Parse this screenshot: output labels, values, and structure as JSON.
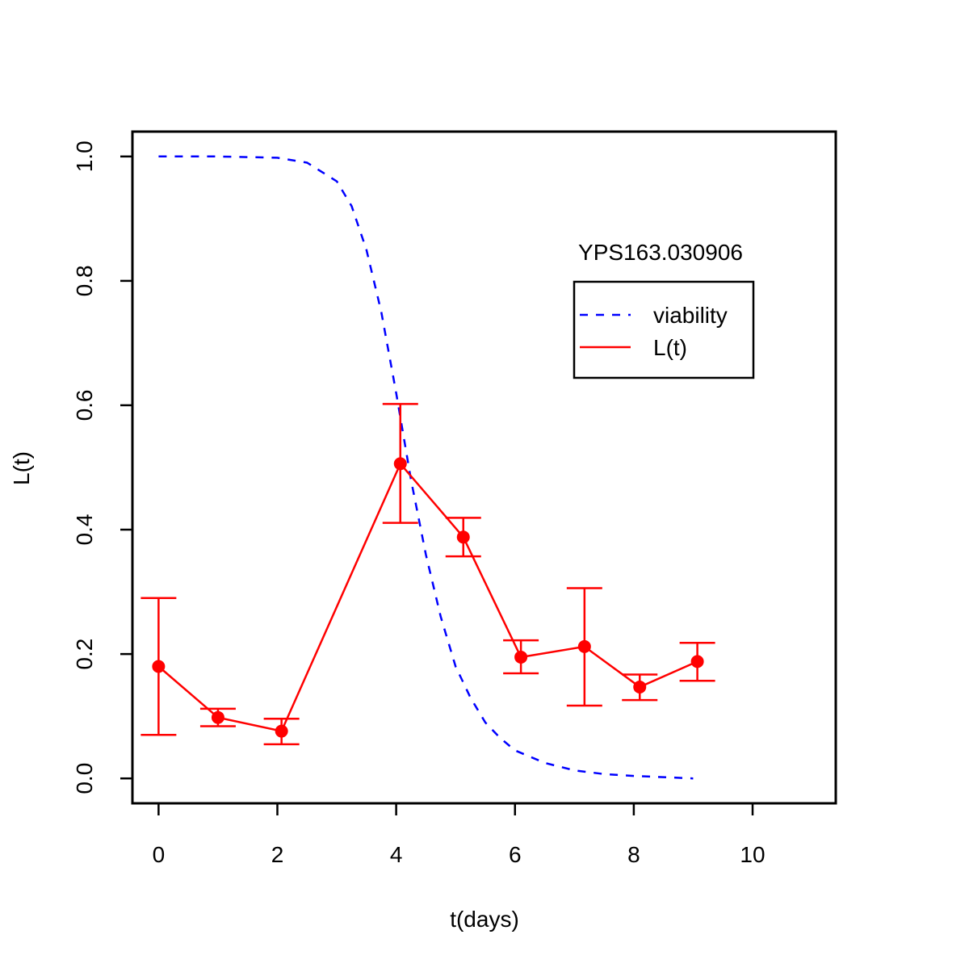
{
  "chart_data": {
    "type": "line",
    "xlabel": "t(days)",
    "ylabel": "L(t)",
    "annotation": "YPS163.030906",
    "xlim": [
      -0.44,
      11.4
    ],
    "ylim": [
      -0.04,
      1.04
    ],
    "x_ticks": [
      0,
      2,
      4,
      6,
      8,
      10
    ],
    "y_ticks": [
      0.0,
      0.2,
      0.4,
      0.6,
      0.8,
      1.0
    ],
    "x_tick_labels": [
      "0",
      "2",
      "4",
      "6",
      "8",
      "10"
    ],
    "y_tick_labels": [
      "0.0",
      "0.2",
      "0.4",
      "0.6",
      "0.8",
      "1.0"
    ],
    "grid": false,
    "legend_position": "top-right",
    "series": [
      {
        "name": "viability",
        "style": "dashed",
        "color": "#0000ff",
        "x": [
          0,
          1,
          2,
          2.5,
          3,
          3.25,
          3.5,
          3.75,
          4,
          4.25,
          4.5,
          4.75,
          5,
          5.25,
          5.5,
          5.75,
          6,
          6.5,
          7,
          7.5,
          8,
          8.5,
          9
        ],
        "y": [
          1.0,
          1.0,
          0.998,
          0.99,
          0.96,
          0.92,
          0.85,
          0.75,
          0.62,
          0.48,
          0.36,
          0.26,
          0.18,
          0.13,
          0.09,
          0.065,
          0.045,
          0.025,
          0.013,
          0.007,
          0.004,
          0.002,
          0.0
        ]
      },
      {
        "name": "L(t)",
        "style": "solid",
        "color": "#ff0000",
        "x": [
          0,
          1,
          2.07,
          4.07,
          5.13,
          6.1,
          7.17,
          8.1,
          9.07
        ],
        "y": [
          0.18,
          0.098,
          0.076,
          0.506,
          0.388,
          0.195,
          0.212,
          0.147,
          0.188
        ],
        "err_low": [
          0.07,
          0.084,
          0.055,
          0.411,
          0.357,
          0.169,
          0.117,
          0.126,
          0.157
        ],
        "err_high": [
          0.29,
          0.112,
          0.096,
          0.602,
          0.419,
          0.222,
          0.306,
          0.167,
          0.218
        ]
      }
    ]
  }
}
